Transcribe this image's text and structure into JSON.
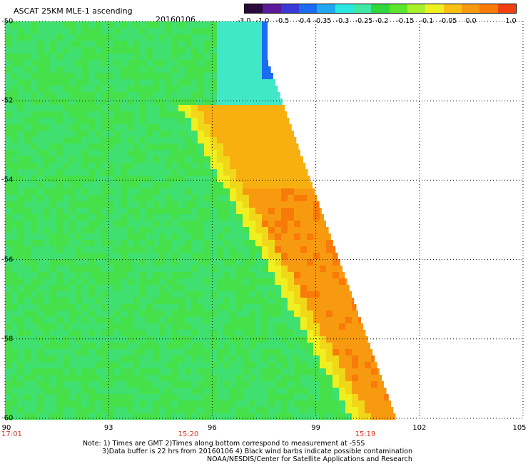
{
  "header": {
    "title": "ASCAT 25KM MLE-1 ascending",
    "date": "20160106"
  },
  "colorbar": {
    "colors": [
      "#2a0a3a",
      "#5a1a9a",
      "#3a3ad8",
      "#1a6cf0",
      "#22a8f0",
      "#2ae8e0",
      "#40e8a8",
      "#2ed83a",
      "#5ae62a",
      "#a8f02a",
      "#f0f020",
      "#f8c010",
      "#f89a10",
      "#f87a08",
      "#f04010"
    ],
    "labels": [
      "-3.0",
      "-1.0",
      "-0.5",
      "-0.4",
      "-0.35",
      "-0.3",
      "-0.25",
      "-0.2",
      "-0.15",
      "-0.1",
      "-0.05",
      "0.0",
      "1.0"
    ]
  },
  "axes": {
    "lat_ticks": [
      "-50",
      "-52",
      "-54",
      "-56",
      "-58",
      "-60"
    ],
    "lon_ticks": [
      "90",
      "93",
      "96",
      "99",
      "102",
      "105"
    ],
    "time_labels": [
      "17:01",
      "15:20",
      "15:19"
    ]
  },
  "notes": {
    "line1": "Note: 1) Times are GMT 2)Times along bottom correspond to measurement at -55S",
    "line2": "3)Data buffer is 22 hrs from 20160106 4) Black wind barbs indicate possible contamination",
    "line3": "NOAA/NESDIS/Center for Satellite Applications and Research"
  }
}
